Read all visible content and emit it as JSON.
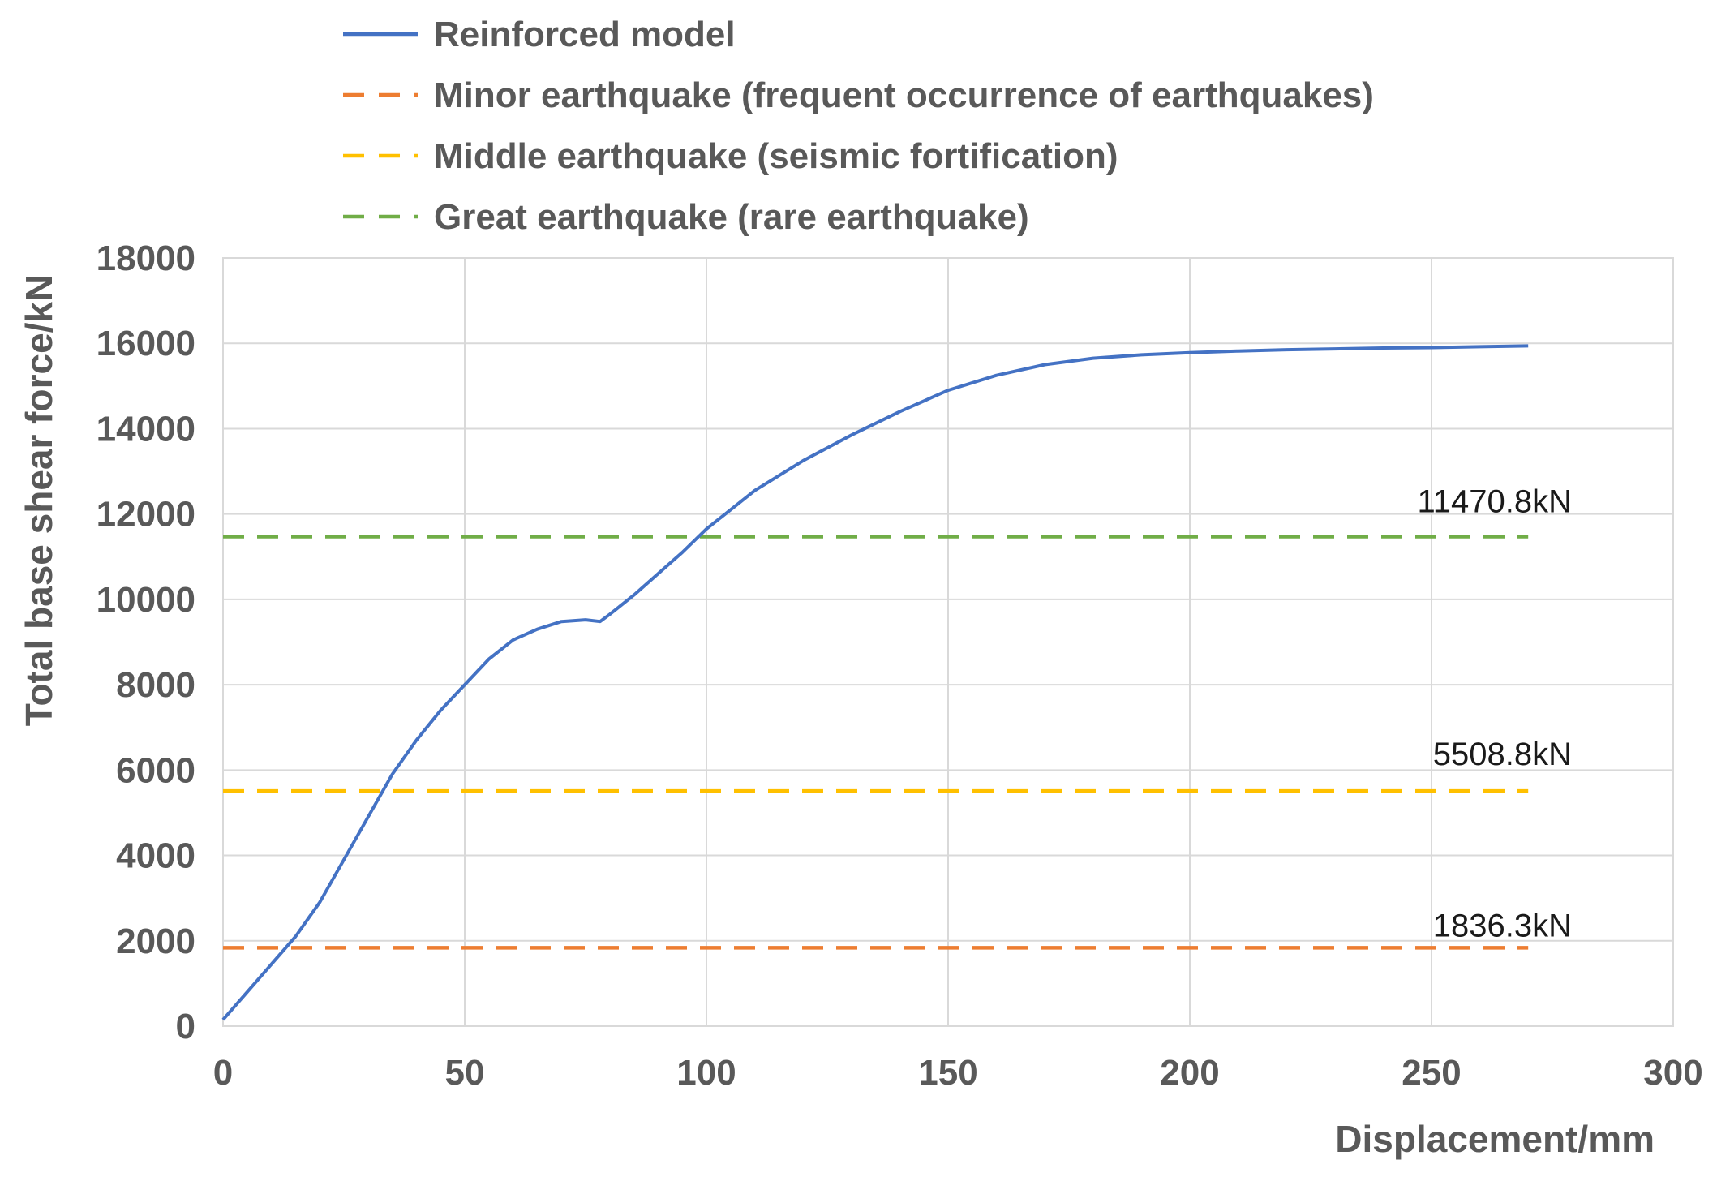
{
  "chart_data": {
    "type": "line",
    "xlabel": "Displacement/mm",
    "ylabel": "Total base shear force/kN",
    "xlim": [
      0,
      300
    ],
    "ylim": [
      0,
      18000
    ],
    "x_ticks": [
      "0",
      "50",
      "100",
      "150",
      "200",
      "250",
      "300"
    ],
    "y_ticks": [
      "0",
      "2000",
      "4000",
      "6000",
      "8000",
      "10000",
      "12000",
      "14000",
      "16000",
      "18000"
    ],
    "grid": true,
    "legend_position": "top",
    "series": [
      {
        "name": "Reinforced model",
        "style": "solid",
        "color": "#4472c4",
        "points": [
          [
            0,
            150
          ],
          [
            5,
            800
          ],
          [
            10,
            1450
          ],
          [
            15,
            2100
          ],
          [
            20,
            2900
          ],
          [
            25,
            3900
          ],
          [
            30,
            4900
          ],
          [
            35,
            5900
          ],
          [
            40,
            6700
          ],
          [
            45,
            7400
          ],
          [
            50,
            8000
          ],
          [
            55,
            8600
          ],
          [
            60,
            9050
          ],
          [
            65,
            9300
          ],
          [
            70,
            9480
          ],
          [
            75,
            9520
          ],
          [
            78,
            9480
          ],
          [
            80,
            9650
          ],
          [
            85,
            10100
          ],
          [
            90,
            10600
          ],
          [
            95,
            11100
          ],
          [
            100,
            11650
          ],
          [
            105,
            12100
          ],
          [
            110,
            12550
          ],
          [
            120,
            13250
          ],
          [
            130,
            13850
          ],
          [
            140,
            14400
          ],
          [
            150,
            14900
          ],
          [
            160,
            15250
          ],
          [
            170,
            15500
          ],
          [
            180,
            15650
          ],
          [
            190,
            15730
          ],
          [
            200,
            15780
          ],
          [
            210,
            15820
          ],
          [
            220,
            15850
          ],
          [
            230,
            15870
          ],
          [
            240,
            15890
          ],
          [
            250,
            15900
          ],
          [
            260,
            15920
          ],
          [
            270,
            15940
          ]
        ]
      },
      {
        "name": "Minor earthquake (frequent occurrence of earthquakes)",
        "style": "dashed",
        "color": "#ed7d31",
        "value": 1836.3,
        "x_range": [
          0,
          270
        ],
        "label": "1836.3kN"
      },
      {
        "name": "Middle earthquake (seismic fortification)",
        "style": "dashed",
        "color": "#ffc000",
        "value": 5508.8,
        "x_range": [
          0,
          270
        ],
        "label": "5508.8kN"
      },
      {
        "name": "Great earthquake (rare earthquake)",
        "style": "dashed",
        "color": "#70ad47",
        "value": 11470.8,
        "x_range": [
          0,
          270
        ],
        "label": "11470.8kN"
      }
    ]
  }
}
